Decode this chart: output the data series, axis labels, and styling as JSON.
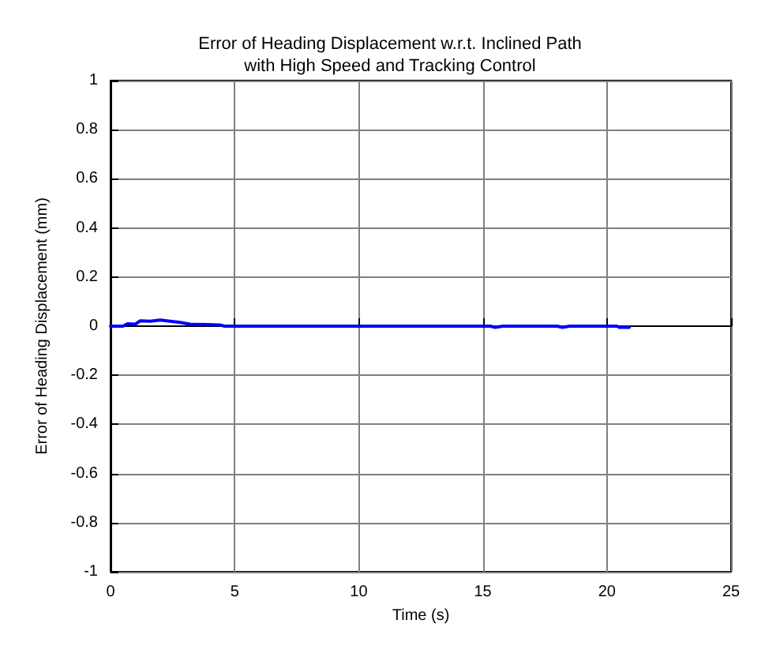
{
  "chart_data": {
    "type": "line",
    "title": "Error of Heading Displacement w.r.t. Inclined Path\nwith High Speed and Tracking Control",
    "xlabel": "Time (s)",
    "ylabel": "Error of Heading Displacement (mm)",
    "x": [
      0,
      0.5,
      0.7,
      1.0,
      1.2,
      1.6,
      2.0,
      2.4,
      2.8,
      3.2,
      4.4,
      4.6,
      15.3,
      15.5,
      15.8,
      18.0,
      18.2,
      18.5,
      20.4,
      20.5,
      20.9
    ],
    "series": [
      {
        "color": "#0000ff",
        "values": [
          0,
          0,
          0.01,
          0.008,
          0.022,
          0.02,
          0.025,
          0.02,
          0.015,
          0.008,
          0.005,
          0,
          0,
          -0.005,
          0,
          0,
          -0.005,
          0,
          0,
          -0.005,
          -0.005
        ]
      }
    ],
    "xlim": [
      0,
      25
    ],
    "xticks": [
      0,
      5,
      10,
      15,
      20,
      25
    ],
    "ylim": [
      -1,
      1
    ],
    "yticks": [
      -1,
      -0.8,
      -0.6,
      -0.4,
      -0.2,
      0,
      0.2,
      0.4,
      0.6,
      0.8,
      1
    ],
    "grid": true,
    "marker": "none",
    "line_style": "solid"
  }
}
